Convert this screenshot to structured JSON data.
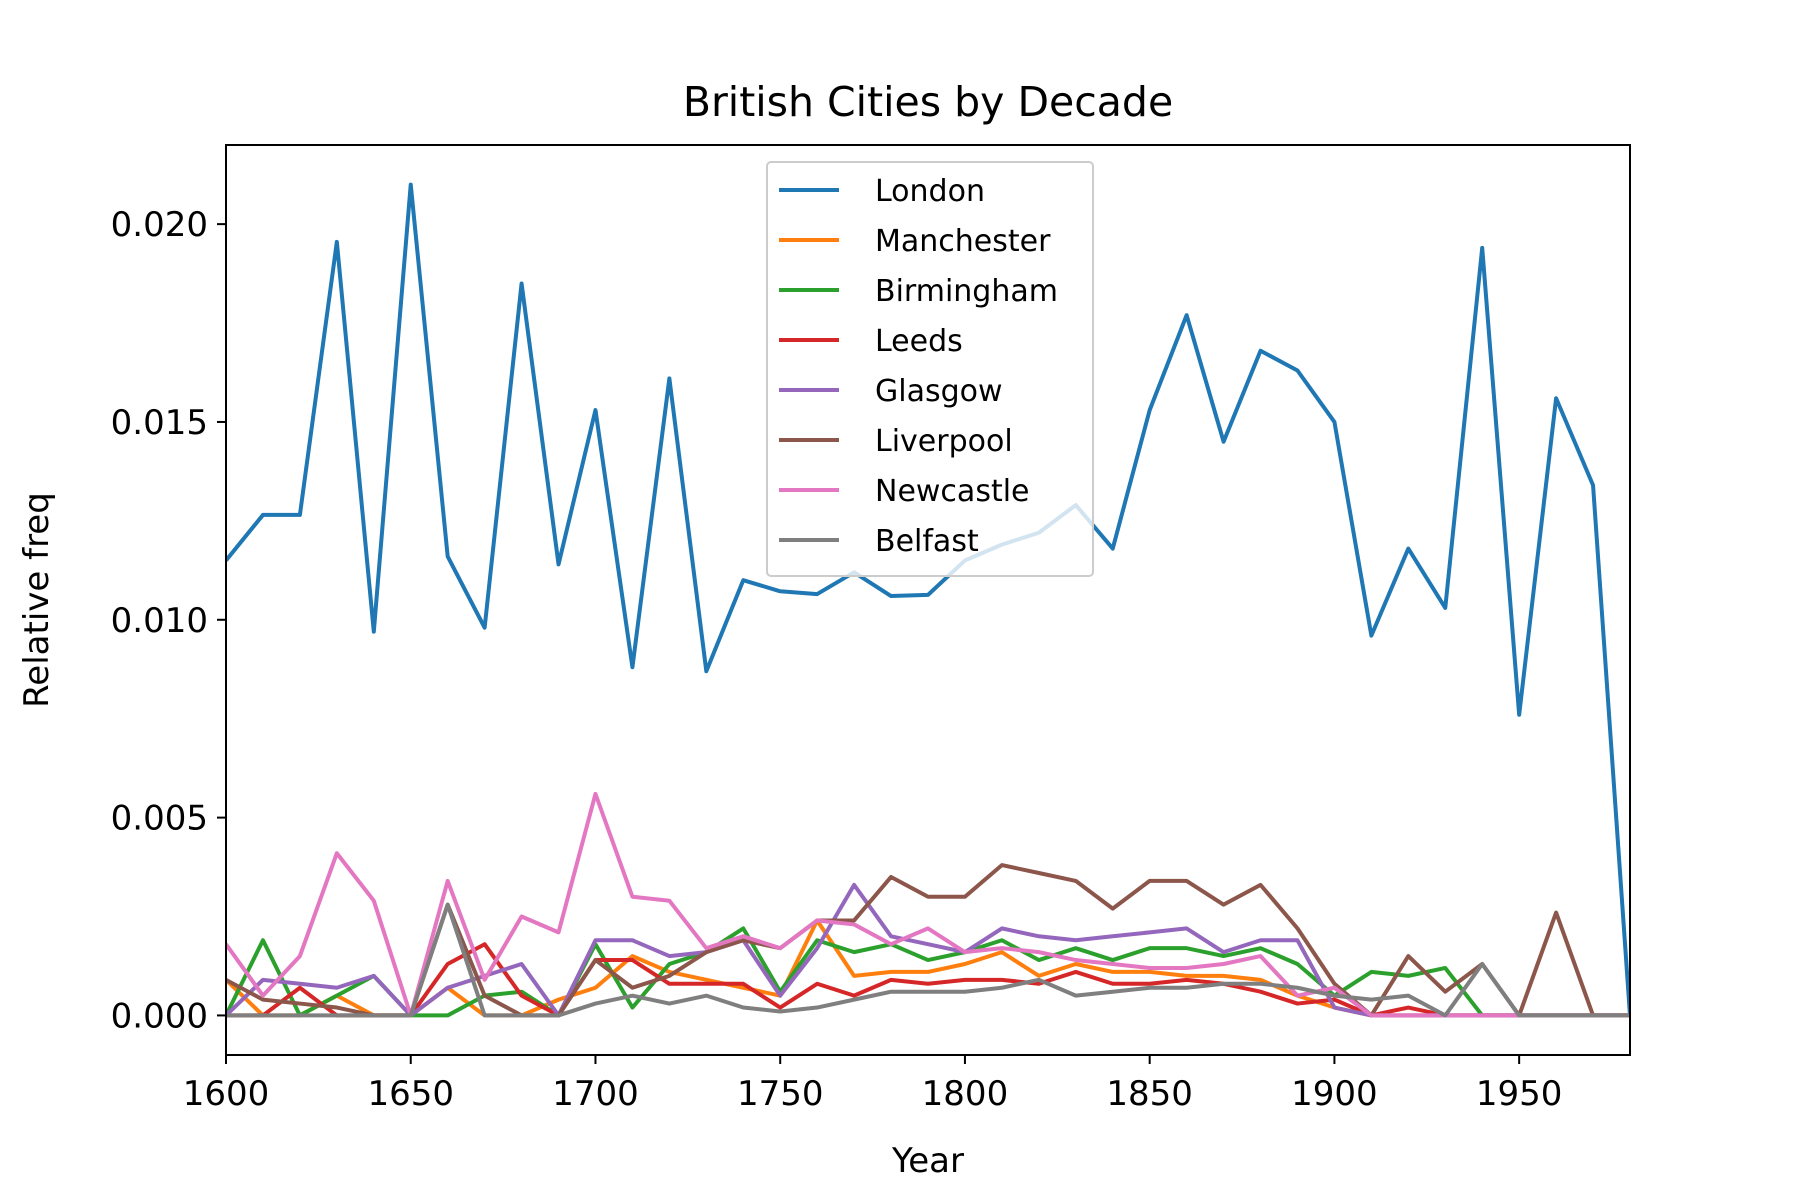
{
  "chart_data": {
    "type": "line",
    "title": "British Cities by Decade",
    "xlabel": "Year",
    "ylabel": "Relative freq",
    "xlim": [
      1600,
      1980
    ],
    "ylim": [
      -0.001,
      0.022
    ],
    "xticks": [
      1600,
      1650,
      1700,
      1750,
      1800,
      1850,
      1900,
      1950
    ],
    "yticks": [
      0.0,
      0.005,
      0.01,
      0.015,
      0.02
    ],
    "xtick_labels": [
      "1600",
      "1650",
      "1700",
      "1750",
      "1800",
      "1850",
      "1900",
      "1950"
    ],
    "ytick_labels": [
      "0.000",
      "0.005",
      "0.010",
      "0.015",
      "0.020"
    ],
    "grid": false,
    "legend_position": "top-center",
    "x": [
      1600,
      1610,
      1620,
      1630,
      1640,
      1650,
      1660,
      1670,
      1680,
      1690,
      1700,
      1710,
      1720,
      1730,
      1740,
      1750,
      1760,
      1770,
      1780,
      1790,
      1800,
      1810,
      1820,
      1830,
      1840,
      1850,
      1860,
      1870,
      1880,
      1890,
      1900,
      1910,
      1920,
      1930,
      1940,
      1950,
      1960,
      1970,
      1980
    ],
    "series": [
      {
        "name": "London",
        "color": "#1f77b4",
        "values": [
          0.0115,
          0.01265,
          0.01265,
          0.01955,
          0.0097,
          0.021,
          0.0116,
          0.0098,
          0.0185,
          0.0114,
          0.0153,
          0.0088,
          0.0161,
          0.0087,
          0.011,
          0.01072,
          0.01065,
          0.0112,
          0.0106,
          0.01063,
          0.0115,
          0.0119,
          0.0122,
          0.0129,
          0.0118,
          0.0153,
          0.0177,
          0.0145,
          0.0168,
          0.0163,
          0.015,
          0.0096,
          0.0118,
          0.0103,
          0.0194,
          0.0076,
          0.0156,
          0.0134,
          0.0
        ]
      },
      {
        "name": "Manchester",
        "color": "#ff7f0e",
        "values": [
          0.0009,
          0.0,
          0.0,
          0.0005,
          0.0,
          0.0,
          0.0007,
          0.0,
          0.0,
          0.0004,
          0.0007,
          0.0015,
          0.0011,
          0.0009,
          0.0007,
          0.0005,
          0.0024,
          0.001,
          0.0011,
          0.0011,
          0.0013,
          0.0016,
          0.001,
          0.0013,
          0.0011,
          0.0011,
          0.001,
          0.001,
          0.0009,
          0.0005,
          0.0002,
          0.0,
          0.0,
          0.0,
          0.0,
          0.0,
          0.0,
          0.0,
          0.0
        ]
      },
      {
        "name": "Birmingham",
        "color": "#2ca02c",
        "values": [
          0.0,
          0.0019,
          0.0,
          0.0005,
          0.001,
          0.0,
          0.0,
          0.0005,
          0.0006,
          0.0,
          0.0018,
          0.0002,
          0.0013,
          0.0016,
          0.0022,
          0.0006,
          0.0019,
          0.0016,
          0.0018,
          0.0014,
          0.0016,
          0.0019,
          0.0014,
          0.0017,
          0.0014,
          0.0017,
          0.0017,
          0.0015,
          0.0017,
          0.0013,
          0.0005,
          0.0011,
          0.001,
          0.0012,
          0.0,
          0.0,
          0.0,
          0.0,
          0.0
        ]
      },
      {
        "name": "Leeds",
        "color": "#d62728",
        "values": [
          0.0,
          0.0,
          0.0007,
          0.0,
          0.0,
          0.0,
          0.0013,
          0.0018,
          0.0005,
          0.0,
          0.0014,
          0.0014,
          0.0008,
          0.0008,
          0.0008,
          0.0002,
          0.0008,
          0.0005,
          0.0009,
          0.0008,
          0.0009,
          0.0009,
          0.0008,
          0.0011,
          0.0008,
          0.0008,
          0.0009,
          0.0008,
          0.0006,
          0.0003,
          0.0004,
          0.0,
          0.0002,
          0.0,
          0.0,
          0.0,
          0.0,
          0.0,
          0.0
        ]
      },
      {
        "name": "Glasgow",
        "color": "#9467bd",
        "values": [
          0.0,
          0.0009,
          0.0008,
          0.0007,
          0.001,
          0.0,
          0.0007,
          0.001,
          0.0013,
          0.0,
          0.0019,
          0.0019,
          0.0015,
          0.0016,
          0.0019,
          0.0005,
          0.0017,
          0.0033,
          0.002,
          0.0018,
          0.0016,
          0.0022,
          0.002,
          0.0019,
          0.002,
          0.0021,
          0.0022,
          0.0016,
          0.0019,
          0.0019,
          0.0002,
          0.0,
          0.0,
          0.0,
          0.0,
          0.0,
          0.0,
          0.0,
          0.0
        ]
      },
      {
        "name": "Liverpool",
        "color": "#8c564b",
        "values": [
          0.0009,
          0.0004,
          0.0003,
          0.0002,
          0.0,
          0.0,
          0.0028,
          0.0005,
          0.0,
          0.0,
          0.0014,
          0.0007,
          0.001,
          0.0016,
          0.0019,
          0.0017,
          0.0024,
          0.0024,
          0.0035,
          0.003,
          0.003,
          0.0038,
          0.0036,
          0.0034,
          0.0027,
          0.0034,
          0.0034,
          0.0028,
          0.0033,
          0.0022,
          0.0008,
          0.0,
          0.0015,
          0.0006,
          0.0013,
          0.0,
          0.0026,
          0.0,
          0.0
        ]
      },
      {
        "name": "Newcastle",
        "color": "#e377c2",
        "values": [
          0.0018,
          0.0005,
          0.0015,
          0.0041,
          0.0029,
          0.0,
          0.0034,
          0.0009,
          0.0025,
          0.0021,
          0.0056,
          0.003,
          0.0029,
          0.0017,
          0.002,
          0.0017,
          0.0024,
          0.0023,
          0.0018,
          0.0022,
          0.0016,
          0.0017,
          0.0016,
          0.0014,
          0.0013,
          0.0012,
          0.0012,
          0.0013,
          0.0015,
          0.0005,
          0.0007,
          0.0,
          0.0,
          0.0,
          0.0,
          0.0,
          0.0,
          0.0,
          0.0
        ]
      },
      {
        "name": "Belfast",
        "color": "#7f7f7f",
        "values": [
          0.0,
          0.0,
          0.0,
          0.0,
          0.0,
          0.0,
          0.0028,
          0.0,
          0.0,
          0.0,
          0.0003,
          0.0005,
          0.0003,
          0.0005,
          0.0002,
          0.0001,
          0.0002,
          0.0004,
          0.0006,
          0.0006,
          0.0006,
          0.0007,
          0.0009,
          0.0005,
          0.0006,
          0.0007,
          0.0007,
          0.0008,
          0.0008,
          0.0007,
          0.0005,
          0.0004,
          0.0005,
          0.0,
          0.0013,
          0.0,
          0.0,
          0.0,
          0.0
        ]
      }
    ]
  }
}
